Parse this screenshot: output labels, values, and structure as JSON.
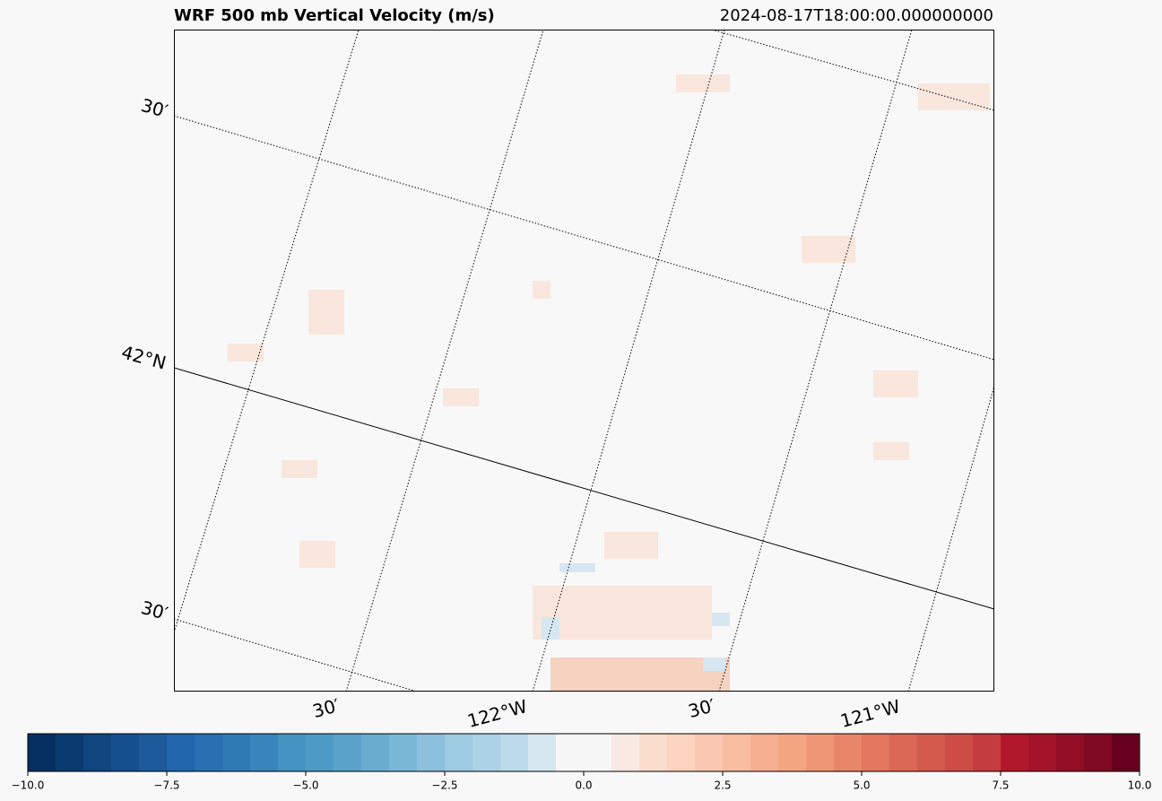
{
  "chart_data": {
    "type": "map",
    "title": "WRF 500 mb Vertical Velocity (m/s)",
    "subtitle": "2024-08-17T18:00:00.000000000",
    "lat_labels": [
      "30′",
      "42°N",
      "30′"
    ],
    "lon_labels": [
      "30′",
      "122°W",
      "30′",
      "121°W"
    ],
    "colorbar": {
      "xlim": [
        -10,
        10
      ],
      "xticks": [
        {
          "value": -10,
          "label": "−10.0"
        },
        {
          "value": -7.5,
          "label": "−7.5"
        },
        {
          "value": -5,
          "label": "−5.0"
        },
        {
          "value": -2.5,
          "label": "−2.5"
        },
        {
          "value": 0,
          "label": "0.0"
        },
        {
          "value": 2.5,
          "label": "2.5"
        },
        {
          "value": 5,
          "label": "5.0"
        },
        {
          "value": 7.5,
          "label": "7.5"
        },
        {
          "value": 10,
          "label": "10.0"
        }
      ],
      "bounds": [
        -10,
        -9.5,
        -9,
        -8.5,
        -8,
        -7.5,
        -7,
        -6.5,
        -6,
        -5.5,
        -5,
        -4.5,
        -4,
        -3.5,
        -3,
        -2.5,
        -2,
        -1.5,
        -1,
        -0.5,
        0,
        0.5,
        1,
        1.5,
        2,
        2.5,
        3,
        3.5,
        4,
        4.5,
        5,
        5.5,
        6,
        6.5,
        7,
        7.5,
        8,
        8.5,
        9,
        9.5,
        10
      ],
      "colors": [
        "#053061",
        "#0a3b70",
        "#10457f",
        "#164f8e",
        "#1c5a9c",
        "#2166ac",
        "#2870b1",
        "#2f79b5",
        "#3884bb",
        "#4393c3",
        "#4e9ac6",
        "#5ba2cb",
        "#6aaccf",
        "#7ab6d6",
        "#8cc0dd",
        "#9dcbe2",
        "#acd2e5",
        "#bcdaea",
        "#d6e7f0",
        "#f7f7f7",
        "#f7f7f7",
        "#f8e9e2",
        "#fbddcd",
        "#fbd3bf",
        "#fac8b0",
        "#f8bca0",
        "#f6af90",
        "#f4a582",
        "#ef9676",
        "#e9866a",
        "#e3765f",
        "#da6854",
        "#d35a4d",
        "#cd4c46",
        "#c43c3f",
        "#b2182b",
        "#a31329",
        "#920e26",
        "#800924",
        "#67001f"
      ]
    }
  }
}
